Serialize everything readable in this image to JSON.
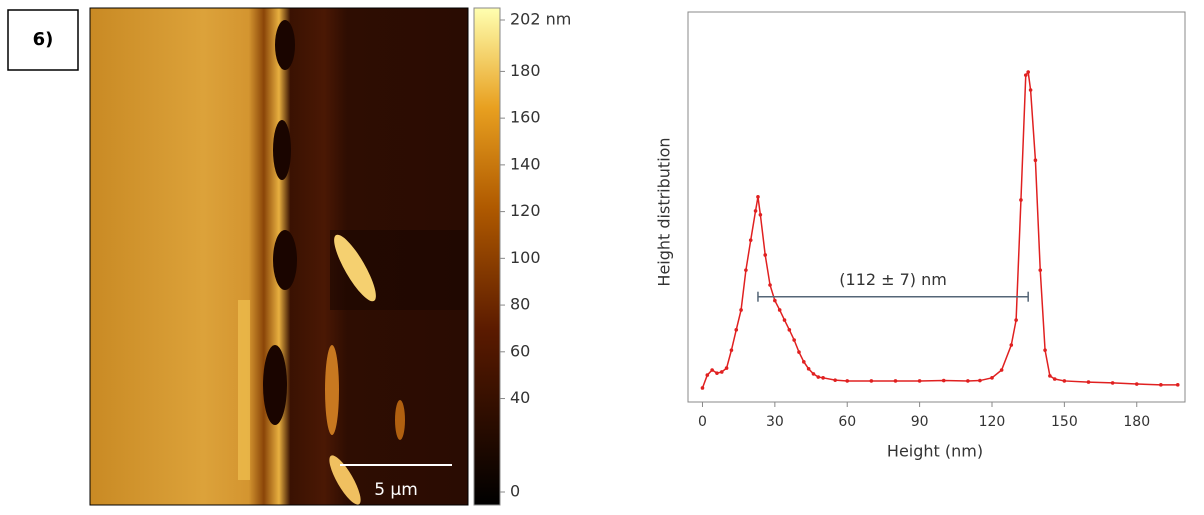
{
  "panel_label": "6)",
  "chart_data": [
    {
      "type": "image-colorbar",
      "scale_bar": "5 µm",
      "clim": [
        0,
        202
      ],
      "cticks": [
        0,
        40,
        60,
        80,
        100,
        120,
        140,
        160,
        180,
        {
          "value": 202,
          "label": "202 nm"
        }
      ]
    },
    {
      "type": "line",
      "xlabel": "Height (nm)",
      "ylabel": "Height distribution",
      "xlim": [
        -6,
        200
      ],
      "ylim": [
        0,
        100
      ],
      "xticks": [
        0,
        30,
        60,
        90,
        120,
        150,
        180
      ],
      "series": [
        {
          "color": "#e02020",
          "x": [
            0,
            2,
            4,
            6,
            8,
            10,
            12,
            14,
            16,
            18,
            20,
            22,
            23,
            24,
            26,
            28,
            30,
            32,
            34,
            36,
            38,
            40,
            42,
            44,
            46,
            48,
            50,
            55,
            60,
            70,
            80,
            90,
            100,
            110,
            115,
            120,
            124,
            128,
            130,
            132,
            134,
            135,
            136,
            138,
            140,
            142,
            144,
            146,
            150,
            160,
            170,
            180,
            190,
            197
          ],
          "values": [
            3.6,
            6.9,
            8.2,
            7.4,
            7.7,
            8.7,
            13.3,
            18.5,
            23.6,
            33.8,
            41.5,
            49,
            52.6,
            48,
            37.7,
            30,
            26,
            23.6,
            21,
            18.5,
            15.9,
            12.8,
            10.3,
            8.5,
            7.2,
            6.4,
            6.2,
            5.6,
            5.4,
            5.4,
            5.4,
            5.4,
            5.5,
            5.4,
            5.5,
            6.2,
            8.2,
            14.6,
            21,
            51.8,
            83.8,
            84.6,
            80,
            62,
            33.8,
            13.3,
            6.7,
            5.9,
            5.4,
            5.1,
            4.9,
            4.6,
            4.4,
            4.4
          ]
        }
      ],
      "annotation": {
        "text": "(112 ± 7) nm",
        "x": [
          23,
          135
        ],
        "y": 27
      }
    }
  ]
}
